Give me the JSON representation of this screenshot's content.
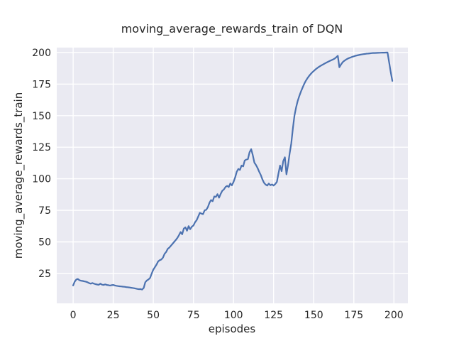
{
  "figure": {
    "title": "moving_average_rewards_train of DQN",
    "xlabel": "episodes",
    "ylabel": "moving_average_rewards_train"
  },
  "colors": {
    "figure_bg": "#ffffff",
    "axes_bg": "#eaeaf2",
    "grid": "#ffffff",
    "line": "#4c72b0",
    "text": "#262626"
  },
  "chart_data": {
    "type": "line",
    "title": "moving_average_rewards_train of DQN",
    "xlabel": "episodes",
    "ylabel": "moving_average_rewards_train",
    "x_ticks": [
      0,
      25,
      50,
      75,
      100,
      125,
      150,
      175,
      200
    ],
    "y_ticks": [
      25,
      50,
      75,
      100,
      125,
      150,
      175,
      200
    ],
    "xlim": [
      -10.2,
      208.7
    ],
    "ylim": [
      1.3,
      203.9
    ],
    "grid": true,
    "legend": false,
    "series": [
      {
        "name": "moving_average_rewards_train",
        "x_start": 0,
        "x_step": 1,
        "values": [
          15.5,
          18.5,
          20.2,
          20.6,
          19.6,
          19.2,
          19.0,
          18.7,
          18.4,
          18.0,
          17.3,
          16.9,
          17.4,
          16.9,
          16.5,
          16.2,
          16.0,
          16.9,
          16.1,
          15.9,
          16.3,
          15.9,
          15.7,
          15.4,
          15.7,
          15.9,
          15.5,
          15.2,
          15.0,
          14.8,
          14.7,
          14.5,
          14.4,
          14.2,
          14.1,
          13.9,
          13.7,
          13.5,
          13.3,
          13.0,
          12.7,
          12.5,
          12.6,
          12.2,
          13.5,
          18.0,
          19.5,
          20.2,
          21.5,
          25.0,
          28.0,
          30.0,
          32.0,
          34.5,
          35.5,
          36.0,
          37.5,
          40.5,
          42.0,
          44.5,
          45.5,
          47.0,
          48.5,
          50.0,
          51.5,
          53.2,
          55.3,
          57.8,
          56.0,
          60.5,
          61.5,
          58.8,
          62.5,
          60.0,
          62.0,
          63.0,
          65.5,
          67.2,
          70.0,
          73.0,
          72.4,
          72.0,
          75.0,
          75.4,
          77.5,
          81.0,
          83.1,
          82.2,
          86.0,
          85.6,
          87.8,
          85.0,
          88.0,
          90.5,
          91.5,
          93.5,
          94.4,
          93.4,
          96.3,
          94.8,
          97.5,
          101.0,
          105.5,
          107.8,
          107.0,
          110.5,
          109.8,
          114.5,
          115.2,
          115.6,
          121.0,
          123.4,
          118.8,
          112.8,
          110.8,
          108.5,
          105.5,
          103.0,
          99.5,
          96.8,
          95.4,
          94.6,
          96.2,
          94.9,
          95.5,
          94.6,
          95.8,
          97.5,
          104.0,
          110.5,
          106.0,
          114.0,
          117.0,
          103.5,
          111.0,
          120.0,
          128.0,
          140.0,
          150.0,
          156.5,
          161.5,
          165.5,
          169.0,
          172.0,
          175.0,
          177.5,
          179.5,
          181.3,
          182.8,
          184.2,
          185.4,
          186.5,
          187.5,
          188.4,
          189.2,
          190.0,
          190.7,
          191.4,
          192.1,
          192.7,
          193.3,
          193.9,
          194.5,
          195.2,
          196.2,
          197.4,
          188.3,
          190.5,
          192.3,
          193.4,
          194.3,
          195.0,
          195.6,
          196.1,
          196.6,
          197.0,
          197.4,
          197.7,
          198.0,
          198.3,
          198.5,
          198.7,
          198.9,
          199.1,
          199.2,
          199.35,
          199.5,
          199.6,
          199.65,
          199.7,
          199.75,
          199.8,
          199.85,
          199.9,
          199.9,
          199.95,
          200.0,
          192.5,
          184.5,
          177.5
        ]
      }
    ]
  }
}
